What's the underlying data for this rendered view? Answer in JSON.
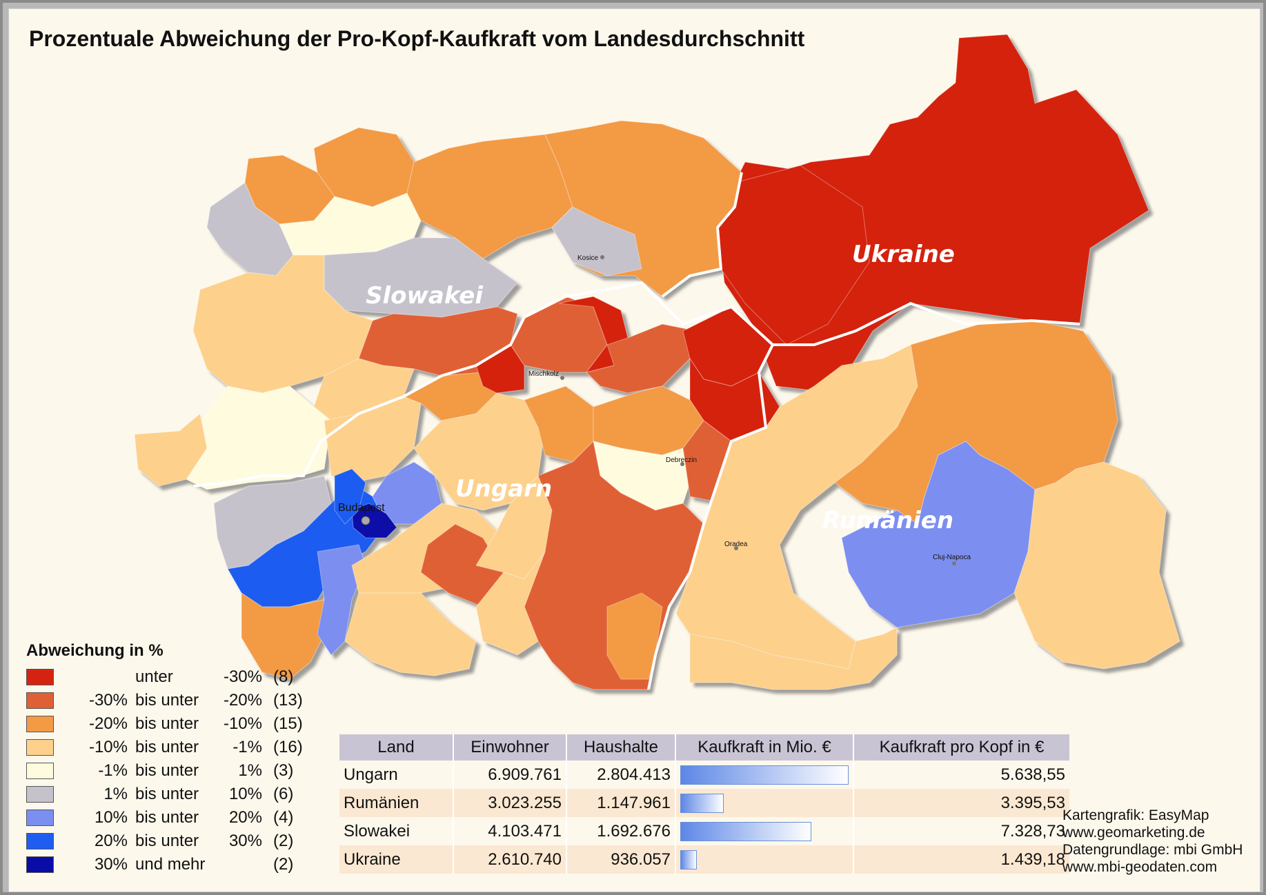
{
  "title": "Prozentuale Abweichung der Pro-Kopf-Kaufkraft vom Landesdurchschnitt",
  "countries": {
    "ukraine": "Ukraine",
    "slovakia": "Slowakei",
    "hungary": "Ungarn",
    "romania": "Rumänien"
  },
  "cities": {
    "kosice": "Kosice",
    "mischkolz": "Mischkolz",
    "debreczin": "Debreczin",
    "budapest": "Budapest",
    "oradea": "Oradea",
    "cluj": "Cluj-Napoca"
  },
  "legend": {
    "title": "Abweichung in %",
    "items": [
      {
        "color": "#d42411",
        "a": "",
        "b": "unter",
        "c": "-30%",
        "n": "(8)"
      },
      {
        "color": "#e06035",
        "a": "-30%",
        "b": "bis unter",
        "c": "-20%",
        "n": "(13)"
      },
      {
        "color": "#f39a45",
        "a": "-20%",
        "b": "bis unter",
        "c": "-10%",
        "n": "(15)"
      },
      {
        "color": "#fdd08c",
        "a": "-10%",
        "b": "bis unter",
        "c": "-1%",
        "n": "(16)"
      },
      {
        "color": "#fffbdf",
        "a": "-1%",
        "b": "bis unter",
        "c": "1%",
        "n": "(3)"
      },
      {
        "color": "#c5c2cc",
        "a": "1%",
        "b": "bis unter",
        "c": "10%",
        "n": "(6)"
      },
      {
        "color": "#7b8ff0",
        "a": "10%",
        "b": "bis unter",
        "c": "20%",
        "n": "(4)"
      },
      {
        "color": "#1f5cf0",
        "a": "20%",
        "b": "bis unter",
        "c": "30%",
        "n": "(2)"
      },
      {
        "color": "#0a0ca8",
        "a": "30%",
        "b": "und mehr",
        "c": "",
        "n": "(2)"
      }
    ]
  },
  "table": {
    "headers": [
      "Land",
      "Einwohner",
      "Haushalte",
      "Kaufkraft in Mio. €",
      "Kaufkraft pro Kopf in €"
    ],
    "rows": [
      {
        "land": "Ungarn",
        "einwohner": "6.909.761",
        "haushalte": "2.804.413",
        "kaufkraft_share": 1.0,
        "pro_kopf": "5.638,55"
      },
      {
        "land": "Rumänien",
        "einwohner": "3.023.255",
        "haushalte": "1.147.961",
        "kaufkraft_share": 0.26,
        "pro_kopf": "3.395,53"
      },
      {
        "land": "Slowakei",
        "einwohner": "4.103.471",
        "haushalte": "1.692.676",
        "kaufkraft_share": 0.78,
        "pro_kopf": "7.328,73"
      },
      {
        "land": "Ukraine",
        "einwohner": "2.610.740",
        "haushalte": "936.057",
        "kaufkraft_share": 0.1,
        "pro_kopf": "1.439,18"
      }
    ]
  },
  "credits": {
    "line1": "Kartengrafik: EasyMap",
    "line2": "www.geomarketing.de",
    "line3": "Datengrundlage: mbi GmbH",
    "line4": "www.mbi-geodaten.com"
  }
}
